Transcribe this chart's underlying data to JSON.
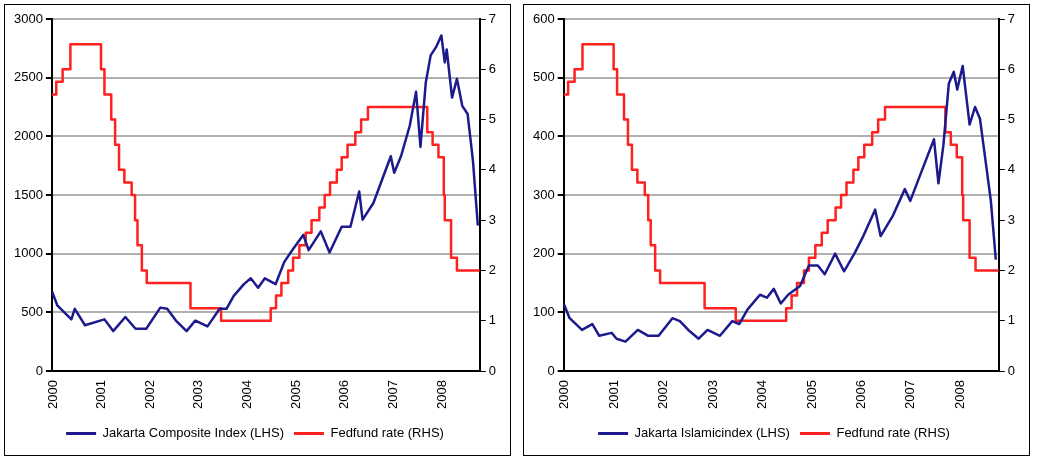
{
  "chart_data": [
    {
      "type": "line",
      "xlim": [
        2000,
        2008.8
      ],
      "xticks": [
        2000,
        2001,
        2002,
        2003,
        2004,
        2005,
        2006,
        2007,
        2008
      ],
      "ylim": [
        0,
        3000
      ],
      "yticks": [
        0,
        500,
        1000,
        1500,
        2000,
        2500,
        3000
      ],
      "y2lim": [
        0,
        7
      ],
      "y2ticks": [
        0,
        1,
        2,
        3,
        4,
        5,
        6,
        7
      ],
      "grid": "y",
      "legend": "bottom",
      "marker": "none",
      "series": [
        {
          "name": "Jakarta Composite Index (LHS)",
          "color": "#1c1a8c",
          "x": [
            2000.0,
            2000.11,
            2000.4,
            2000.47,
            2000.68,
            2001.08,
            2001.26,
            2001.51,
            2001.72,
            2001.94,
            2002.23,
            2002.37,
            2002.55,
            2002.77,
            2002.95,
            2003.2,
            2003.45,
            2003.59,
            2003.74,
            2003.95,
            2004.09,
            2004.24,
            2004.38,
            2004.6,
            2004.78,
            2004.96,
            2005.17,
            2005.28,
            2005.53,
            2005.71,
            2005.96,
            2006.14,
            2006.32,
            2006.39,
            2006.61,
            2006.79,
            2006.97,
            2007.04,
            2007.18,
            2007.36,
            2007.49,
            2007.58,
            2007.69,
            2007.79,
            2007.9,
            2008.01,
            2008.08,
            2008.12,
            2008.23,
            2008.33,
            2008.44,
            2008.55,
            2008.66,
            2008.76
          ],
          "values": [
            680,
            560,
            440,
            530,
            390,
            440,
            340,
            460,
            360,
            360,
            540,
            530,
            430,
            340,
            430,
            380,
            530,
            530,
            640,
            740,
            790,
            710,
            790,
            740,
            930,
            1040,
            1160,
            1030,
            1190,
            1010,
            1230,
            1230,
            1530,
            1290,
            1430,
            1630,
            1830,
            1690,
            1830,
            2090,
            2380,
            1910,
            2460,
            2690,
            2760,
            2860,
            2630,
            2740,
            2330,
            2490,
            2260,
            2190,
            1790,
            1240
          ]
        },
        {
          "name": "Fedfund rate (RHS)",
          "type": "step",
          "axis": "y2",
          "color": "#ff2020",
          "x": [
            2000.0,
            2000.09,
            2000.22,
            2000.38,
            2001.01,
            2001.08,
            2001.22,
            2001.3,
            2001.38,
            2001.49,
            2001.64,
            2001.71,
            2001.76,
            2001.85,
            2001.95,
            2002.85,
            2003.48,
            2004.5,
            2004.61,
            2004.72,
            2004.86,
            2004.96,
            2005.09,
            2005.22,
            2005.34,
            2005.5,
            2005.61,
            2005.72,
            2005.86,
            2005.96,
            2006.08,
            2006.24,
            2006.36,
            2006.5,
            2007.72,
            2007.83,
            2007.95,
            2008.06,
            2008.08,
            2008.21,
            2008.33,
            2008.8
          ],
          "values": [
            5.5,
            5.75,
            6.0,
            6.5,
            6.0,
            5.5,
            5.0,
            4.5,
            4.0,
            3.75,
            3.5,
            3.0,
            2.5,
            2.0,
            1.75,
            1.25,
            1.0,
            1.25,
            1.5,
            1.75,
            2.0,
            2.25,
            2.5,
            2.75,
            3.0,
            3.25,
            3.5,
            3.75,
            4.0,
            4.25,
            4.5,
            4.75,
            5.0,
            5.25,
            4.75,
            4.5,
            4.25,
            3.5,
            3.0,
            2.25,
            2.0,
            2.0
          ]
        }
      ]
    },
    {
      "type": "line",
      "xlim": [
        2000,
        2008.8
      ],
      "xticks": [
        2000,
        2001,
        2002,
        2003,
        2004,
        2005,
        2006,
        2007,
        2008
      ],
      "ylim": [
        0,
        600
      ],
      "yticks": [
        0,
        100,
        200,
        300,
        400,
        500,
        600
      ],
      "y2lim": [
        0,
        7
      ],
      "y2ticks": [
        0,
        1,
        2,
        3,
        4,
        5,
        6,
        7
      ],
      "grid": "y",
      "legend": "bottom",
      "marker": "none",
      "series": [
        {
          "name": "Jakarta Islamicindex (LHS)",
          "color": "#1c1a8c",
          "x": [
            2000.0,
            2000.12,
            2000.37,
            2000.58,
            2000.72,
            2000.97,
            2001.07,
            2001.25,
            2001.5,
            2001.71,
            2001.92,
            2002.2,
            2002.35,
            2002.52,
            2002.73,
            2002.91,
            2003.16,
            2003.41,
            2003.55,
            2003.72,
            2003.97,
            2004.11,
            2004.25,
            2004.39,
            2004.54,
            2004.78,
            2004.96,
            2005.14,
            2005.28,
            2005.49,
            2005.67,
            2005.88,
            2006.06,
            2006.3,
            2006.41,
            2006.66,
            2006.9,
            2007.01,
            2007.26,
            2007.49,
            2007.58,
            2007.68,
            2007.79,
            2007.89,
            2007.96,
            2008.07,
            2008.21,
            2008.32,
            2008.42,
            2008.53,
            2008.64,
            2008.74
          ],
          "values": [
            115,
            90,
            70,
            80,
            60,
            65,
            55,
            50,
            70,
            60,
            60,
            90,
            85,
            70,
            55,
            70,
            60,
            85,
            80,
            105,
            130,
            125,
            140,
            115,
            130,
            145,
            180,
            180,
            165,
            200,
            170,
            200,
            230,
            275,
            230,
            265,
            310,
            290,
            345,
            395,
            320,
            385,
            490,
            510,
            480,
            520,
            420,
            450,
            430,
            360,
            290,
            190
          ]
        },
        {
          "name": "Fedfund rate (RHS)",
          "type": "step",
          "axis": "y2",
          "color": "#ff2020",
          "x": [
            2000.0,
            2000.09,
            2000.22,
            2000.38,
            2001.01,
            2001.08,
            2001.22,
            2001.3,
            2001.38,
            2001.49,
            2001.64,
            2001.71,
            2001.76,
            2001.85,
            2001.95,
            2002.85,
            2003.48,
            2004.5,
            2004.61,
            2004.72,
            2004.86,
            2004.96,
            2005.09,
            2005.22,
            2005.34,
            2005.5,
            2005.61,
            2005.72,
            2005.86,
            2005.96,
            2006.08,
            2006.24,
            2006.36,
            2006.5,
            2007.72,
            2007.83,
            2007.95,
            2008.06,
            2008.08,
            2008.21,
            2008.33,
            2008.8
          ],
          "values": [
            5.5,
            5.75,
            6.0,
            6.5,
            6.0,
            5.5,
            5.0,
            4.5,
            4.0,
            3.75,
            3.5,
            3.0,
            2.5,
            2.0,
            1.75,
            1.25,
            1.0,
            1.25,
            1.5,
            1.75,
            2.0,
            2.25,
            2.5,
            2.75,
            3.0,
            3.25,
            3.5,
            3.75,
            4.0,
            4.25,
            4.5,
            4.75,
            5.0,
            5.25,
            4.75,
            4.5,
            4.25,
            3.5,
            3.0,
            2.25,
            2.0,
            2.0
          ]
        }
      ]
    }
  ]
}
